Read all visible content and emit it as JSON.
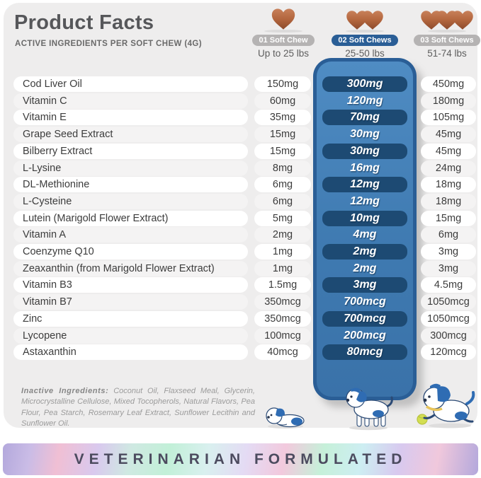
{
  "header": {
    "title": "Product Facts",
    "subtitle": "ACTIVE INGREDIENTS PER SOFT CHEW (4G)"
  },
  "dose_columns": [
    {
      "label": "01 Soft Chew",
      "weight": "Up to 25 lbs",
      "chews": 1,
      "highlighted": false
    },
    {
      "label": "02 Soft Chews",
      "weight": "25-50 lbs",
      "chews": 2,
      "highlighted": true
    },
    {
      "label": "03 Soft Chews",
      "weight": "51-74 lbs",
      "chews": 3,
      "highlighted": false
    }
  ],
  "rows": [
    {
      "name": "Cod Liver Oil",
      "dose1": "150mg",
      "dose2": "300mg",
      "dose3": "450mg"
    },
    {
      "name": "Vitamin C",
      "dose1": "60mg",
      "dose2": "120mg",
      "dose3": "180mg"
    },
    {
      "name": "Vitamin E",
      "dose1": "35mg",
      "dose2": "70mg",
      "dose3": "105mg"
    },
    {
      "name": "Grape Seed Extract",
      "dose1": "15mg",
      "dose2": "30mg",
      "dose3": "45mg"
    },
    {
      "name": "Bilberry Extract",
      "dose1": "15mg",
      "dose2": "30mg",
      "dose3": "45mg"
    },
    {
      "name": "L-Lysine",
      "dose1": "8mg",
      "dose2": "16mg",
      "dose3": "24mg"
    },
    {
      "name": "DL-Methionine",
      "dose1": "6mg",
      "dose2": "12mg",
      "dose3": "18mg"
    },
    {
      "name": "L-Cysteine",
      "dose1": "6mg",
      "dose2": "12mg",
      "dose3": "18mg"
    },
    {
      "name": "Lutein (Marigold Flower Extract)",
      "dose1": "5mg",
      "dose2": "10mg",
      "dose3": "15mg"
    },
    {
      "name": "Vitamin A",
      "dose1": "2mg",
      "dose2": "4mg",
      "dose3": "6mg"
    },
    {
      "name": "Coenzyme Q10",
      "dose1": "1mg",
      "dose2": "2mg",
      "dose3": "3mg"
    },
    {
      "name": "Zeaxanthin (from Marigold Flower Extract)",
      "dose1": "1mg",
      "dose2": "2mg",
      "dose3": "3mg"
    },
    {
      "name": "Vitamin B3",
      "dose1": "1.5mg",
      "dose2": "3mg",
      "dose3": "4.5mg"
    },
    {
      "name": "Vitamin B7",
      "dose1": "350mcg",
      "dose2": "700mcg",
      "dose3": "1050mcg"
    },
    {
      "name": "Zinc",
      "dose1": "350mcg",
      "dose2": "700mcg",
      "dose3": "1050mcg"
    },
    {
      "name": "Lycopene",
      "dose1": "100mcg",
      "dose2": "200mcg",
      "dose3": "300mcg"
    },
    {
      "name": "Astaxanthin",
      "dose1": "40mcg",
      "dose2": "80mcg",
      "dose3": "120mcg"
    }
  ],
  "inactive": {
    "label": "Inactive Ingredients:",
    "text": "Coconut Oil, Flaxseed Meal, Glycerin, Microcrystalline Cellulose, Mixed Tocopherols, Natural Flavors, Pea Flour, Pea Starch, Rosemary Leaf Extract, Sunflower Lecithin and Sunflower Oil."
  },
  "banner": {
    "text": "VETERINARIAN FORMULATED"
  },
  "colors": {
    "accent_blue": "#2a5e96",
    "column_fill": "#4180b8",
    "navy_value_pill": "#1d4a73",
    "gray_pill": "#b5b3b3",
    "card_bg": "#eeeded",
    "chew_brown": "#b3663e",
    "banner_text": "#4c4b5f"
  }
}
